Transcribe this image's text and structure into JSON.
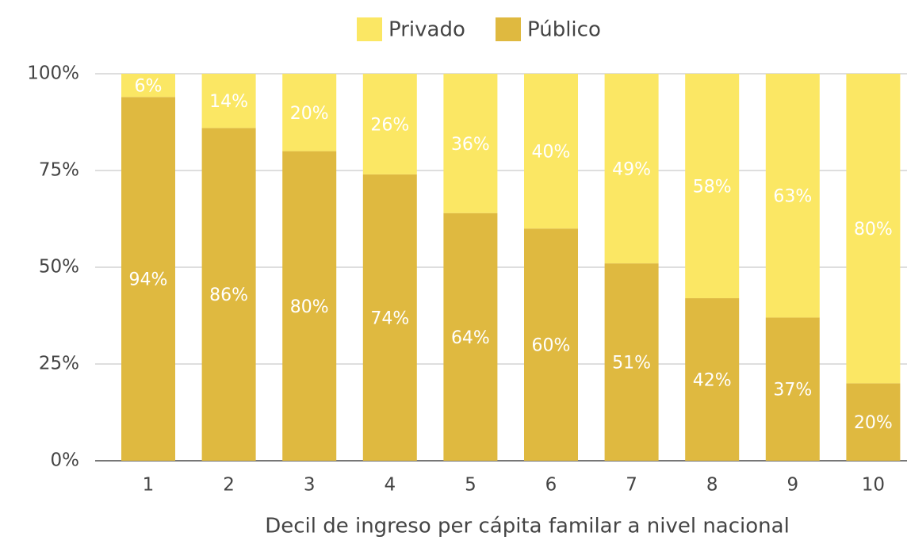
{
  "chart_data": {
    "type": "stacked_bar",
    "x_label": "Decil de ingreso per cápita familar a nivel nacional",
    "categories": [
      "1",
      "2",
      "3",
      "4",
      "5",
      "6",
      "7",
      "8",
      "9",
      "10"
    ],
    "series": [
      {
        "name": "Privado",
        "color": "#fbe764",
        "values": [
          6,
          14,
          20,
          26,
          36,
          40,
          49,
          58,
          63,
          80
        ],
        "value_labels": [
          "6%",
          "14%",
          "20%",
          "26%",
          "36%",
          "40%",
          "49%",
          "58%",
          "63%",
          "80%"
        ]
      },
      {
        "name": "Público",
        "color": "#dfb940",
        "values": [
          94,
          86,
          80,
          74,
          64,
          60,
          51,
          42,
          37,
          20
        ],
        "value_labels": [
          "94%",
          "86%",
          "80%",
          "74%",
          "64%",
          "60%",
          "51%",
          "42%",
          "37%",
          "20%"
        ]
      }
    ],
    "ylim": [
      0,
      100
    ],
    "yticks": [
      {
        "value": 0,
        "label": "0%"
      },
      {
        "value": 25,
        "label": "25%"
      },
      {
        "value": 50,
        "label": "50%"
      },
      {
        "value": 75,
        "label": "75%"
      },
      {
        "value": 100,
        "label": "100%"
      }
    ],
    "grid": true,
    "legend": "top"
  }
}
